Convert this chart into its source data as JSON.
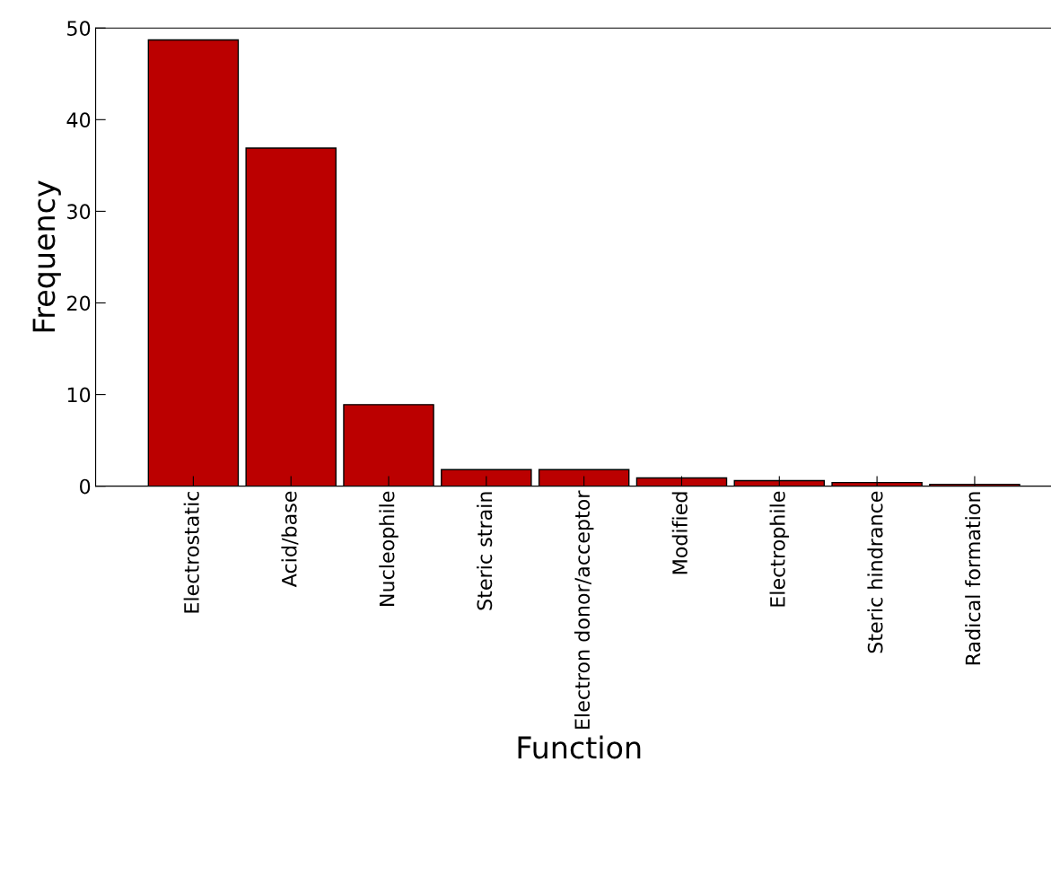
{
  "chart_data": {
    "type": "bar",
    "xlabel": "Function",
    "ylabel": "Frequency",
    "categories": [
      "Electrostatic",
      "Acid/base",
      "Nucleophile",
      "Steric strain",
      "Electron donor/acceptor",
      "Modified",
      "Electrophile",
      "Steric hindrance",
      "Radical formation"
    ],
    "values": [
      48.7,
      36.9,
      8.9,
      1.8,
      1.8,
      0.9,
      0.6,
      0.4,
      0.2
    ],
    "color": "#bb0000",
    "ylim": [
      0,
      50
    ],
    "yticks": [
      0,
      10,
      20,
      30,
      40,
      50
    ],
    "grid": false
  }
}
